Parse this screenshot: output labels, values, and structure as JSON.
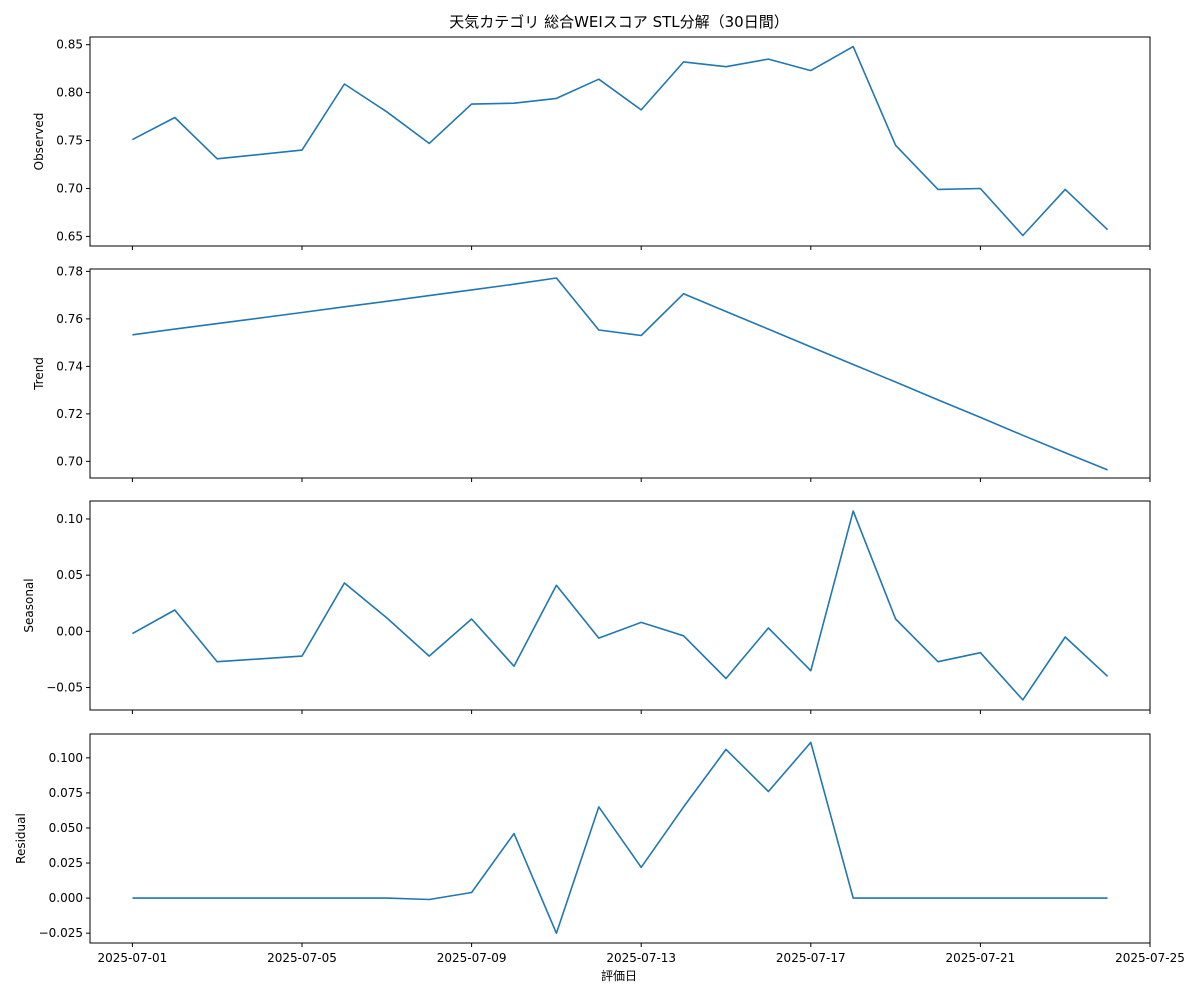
{
  "chart_data": {
    "type": "line",
    "title": "天気カテゴリ 総合WEIスコア STL分解（30日間）",
    "xlabel": "評価日",
    "x": [
      "2025-07-01",
      "2025-07-02",
      "2025-07-03",
      "2025-07-05",
      "2025-07-06",
      "2025-07-07",
      "2025-07-08",
      "2025-07-09",
      "2025-07-10",
      "2025-07-11",
      "2025-07-12",
      "2025-07-13",
      "2025-07-14",
      "2025-07-15",
      "2025-07-16",
      "2025-07-17",
      "2025-07-18",
      "2025-07-19",
      "2025-07-20",
      "2025-07-21",
      "2025-07-22",
      "2025-07-23",
      "2025-07-24"
    ],
    "x_ticks": [
      "2025-07-01",
      "2025-07-05",
      "2025-07-09",
      "2025-07-13",
      "2025-07-17",
      "2025-07-21",
      "2025-07-25"
    ],
    "x_range": [
      "2025-06-30T00:00",
      "2025-07-25T00:00"
    ],
    "grid": false,
    "panels": [
      {
        "ylabel": "Observed",
        "ylim": [
          0.64,
          0.858
        ],
        "yticks": [
          0.65,
          0.7,
          0.75,
          0.8,
          0.85
        ],
        "tick_decimals": 2,
        "values": [
          0.751,
          0.774,
          0.731,
          0.74,
          0.809,
          0.78,
          0.747,
          0.788,
          0.789,
          0.794,
          0.814,
          0.782,
          0.832,
          0.827,
          0.835,
          0.823,
          0.848,
          0.745,
          0.699,
          0.7,
          0.651,
          0.699,
          0.657
        ]
      },
      {
        "ylabel": "Trend",
        "ylim": [
          0.693,
          0.781
        ],
        "yticks": [
          0.7,
          0.72,
          0.74,
          0.76,
          0.78
        ],
        "tick_decimals": 2,
        "values": [
          0.7533,
          0.7557,
          0.758,
          0.7627,
          0.7651,
          0.7674,
          0.7698,
          0.7722,
          0.7746,
          0.7772,
          0.7553,
          0.753,
          0.7706,
          0.7631,
          0.7557,
          0.7482,
          0.7408,
          0.7334,
          0.7259,
          0.7185,
          0.711,
          0.7036,
          0.6964
        ]
      },
      {
        "ylabel": "Seasonal",
        "ylim": [
          -0.07,
          0.116
        ],
        "yticks": [
          -0.05,
          0.0,
          0.05,
          0.1
        ],
        "tick_decimals": 2,
        "values": [
          -0.002,
          0.019,
          -0.027,
          -0.022,
          0.043,
          0.012,
          -0.022,
          0.011,
          -0.031,
          0.041,
          -0.006,
          0.008,
          -0.004,
          -0.042,
          0.003,
          -0.035,
          0.107,
          0.011,
          -0.027,
          -0.019,
          -0.061,
          -0.005,
          -0.04
        ]
      },
      {
        "ylabel": "Residual",
        "ylim": [
          -0.032,
          0.117
        ],
        "yticks": [
          -0.025,
          0.0,
          0.025,
          0.05,
          0.075,
          0.1
        ],
        "tick_decimals": 3,
        "values": [
          0.0,
          0.0,
          0.0,
          0.0,
          0.0,
          0.0,
          -0.001,
          0.004,
          0.046,
          -0.025,
          0.065,
          0.022,
          0.065,
          0.106,
          0.076,
          0.111,
          0.0,
          0.0,
          0.0,
          0.0,
          0.0,
          0.0,
          0.0
        ]
      }
    ],
    "colors": {
      "line": "#1f77b4",
      "frame": "#000000"
    }
  }
}
